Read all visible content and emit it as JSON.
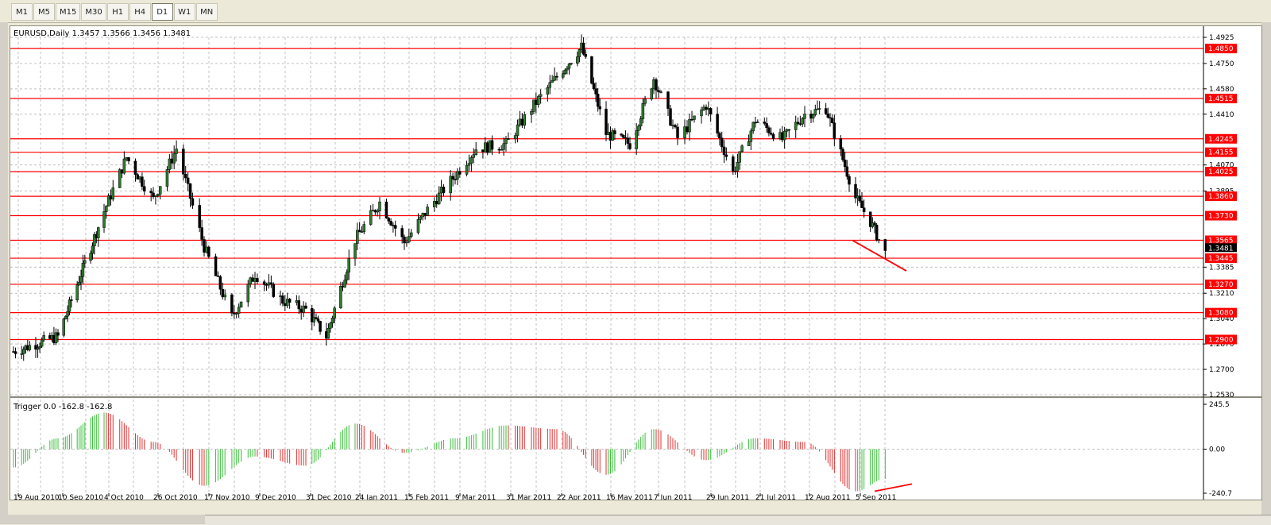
{
  "toolbar": {
    "timeframes": [
      "M1",
      "M5",
      "M15",
      "M30",
      "H1",
      "H4",
      "D1",
      "W1",
      "MN"
    ],
    "active": "D1"
  },
  "chart": {
    "header": "EURUSD,Daily  1.3457 1.3566 1.3456 1.3481",
    "current_price": "1.3481",
    "colors": {
      "resistance_line": "#ff0000",
      "candle_bull": "#2f7a2f",
      "candle_bear": "#000000",
      "grid": "#c0c0c0",
      "hist_up": "#3cbf3c",
      "hist_down": "#e03030"
    },
    "price_axis_ticks": [
      "1.4925",
      "1.4750",
      "1.4580",
      "1.4410",
      "1.4070",
      "1.3895",
      "1.3385",
      "1.3210",
      "1.3040",
      "1.2870",
      "1.2700",
      "1.2530"
    ],
    "level_labels": [
      "1.4850",
      "1.4515",
      "1.4245",
      "1.4155",
      "1.4025",
      "1.3860",
      "1.3730",
      "1.3565",
      "1.3445",
      "1.3270",
      "1.3080",
      "1.2900"
    ],
    "date_labels": [
      "19 Aug 2010",
      "10 Sep 2010",
      "4 Oct 2010",
      "26 Oct 2010",
      "17 Nov 2010",
      "9 Dec 2010",
      "31 Dec 2010",
      "24 Jan 2011",
      "15 Feb 2011",
      "9 Mar 2011",
      "31 Mar 2011",
      "22 Apr 2011",
      "16 May 2011",
      "7 Jun 2011",
      "29 Jun 2011",
      "21 Jul 2011",
      "12 Aug 2011",
      "5 Sep 2011"
    ]
  },
  "indicator": {
    "header": "Trigger 0.0 -162.8 -162.8",
    "axis_ticks": [
      "245.5",
      "0.00",
      "-240.7"
    ]
  },
  "chart_data": {
    "type": "candlestick",
    "title": "EURUSD,Daily",
    "ylim": [
      1.253,
      1.4925
    ],
    "horizontal_levels": [
      1.485,
      1.4515,
      1.4245,
      1.4155,
      1.4025,
      1.386,
      1.373,
      1.3565,
      1.3445,
      1.327,
      1.308,
      1.29
    ],
    "price_path": [
      [
        "19 Aug 2010",
        1.282
      ],
      [
        "10 Sep 2010",
        1.292
      ],
      [
        "4 Oct 2010",
        1.376
      ],
      [
        "14 Oct 2010",
        1.412
      ],
      [
        "26 Oct 2010",
        1.384
      ],
      [
        "5 Nov 2010",
        1.418
      ],
      [
        "17 Nov 2010",
        1.352
      ],
      [
        "29 Nov 2010",
        1.305
      ],
      [
        "9 Dec 2010",
        1.334
      ],
      [
        "21 Dec 2010",
        1.316
      ],
      [
        "31 Dec 2010",
        1.31
      ],
      [
        "10 Jan 2011",
        1.292
      ],
      [
        "24 Jan 2011",
        1.357
      ],
      [
        "4 Feb 2011",
        1.382
      ],
      [
        "15 Feb 2011",
        1.355
      ],
      [
        "25 Feb 2011",
        1.377
      ],
      [
        "9 Mar 2011",
        1.4
      ],
      [
        "18 Mar 2011",
        1.418
      ],
      [
        "31 Mar 2011",
        1.421
      ],
      [
        "12 Apr 2011",
        1.447
      ],
      [
        "22 Apr 2011",
        1.466
      ],
      [
        "4 May 2011",
        1.486
      ],
      [
        "16 May 2011",
        1.428
      ],
      [
        "27 May 2011",
        1.421
      ],
      [
        "7 Jun 2011",
        1.465
      ],
      [
        "17 Jun 2011",
        1.425
      ],
      [
        "29 Jun 2011",
        1.447
      ],
      [
        "11 Jul 2011",
        1.402
      ],
      [
        "21 Jul 2011",
        1.437
      ],
      [
        "2 Aug 2011",
        1.424
      ],
      [
        "12 Aug 2011",
        1.441
      ],
      [
        "22 Aug 2011",
        1.445
      ],
      [
        "5 Sep 2011",
        1.385
      ],
      [
        "12 Sep 2011",
        1.369
      ],
      [
        "19 Sep 2011",
        1.348
      ]
    ],
    "trigger_ylim": [
      -240.7,
      245.5
    ],
    "trigger_path": [
      [
        "19 Aug 2010",
        -100
      ],
      [
        "10 Sep 2010",
        60
      ],
      [
        "4 Oct 2010",
        200
      ],
      [
        "26 Oct 2010",
        40
      ],
      [
        "17 Nov 2010",
        -200
      ],
      [
        "9 Dec 2010",
        -40
      ],
      [
        "31 Dec 2010",
        -90
      ],
      [
        "24 Jan 2011",
        140
      ],
      [
        "15 Feb 2011",
        -20
      ],
      [
        "9 Mar 2011",
        60
      ],
      [
        "31 Mar 2011",
        130
      ],
      [
        "22 Apr 2011",
        110
      ],
      [
        "16 May 2011",
        -140
      ],
      [
        "7 Jun 2011",
        110
      ],
      [
        "29 Jun 2011",
        -60
      ],
      [
        "21 Jul 2011",
        60
      ],
      [
        "12 Aug 2011",
        40
      ],
      [
        "5 Sep 2011",
        -230
      ],
      [
        "19 Sep 2011",
        -162.8
      ]
    ]
  }
}
